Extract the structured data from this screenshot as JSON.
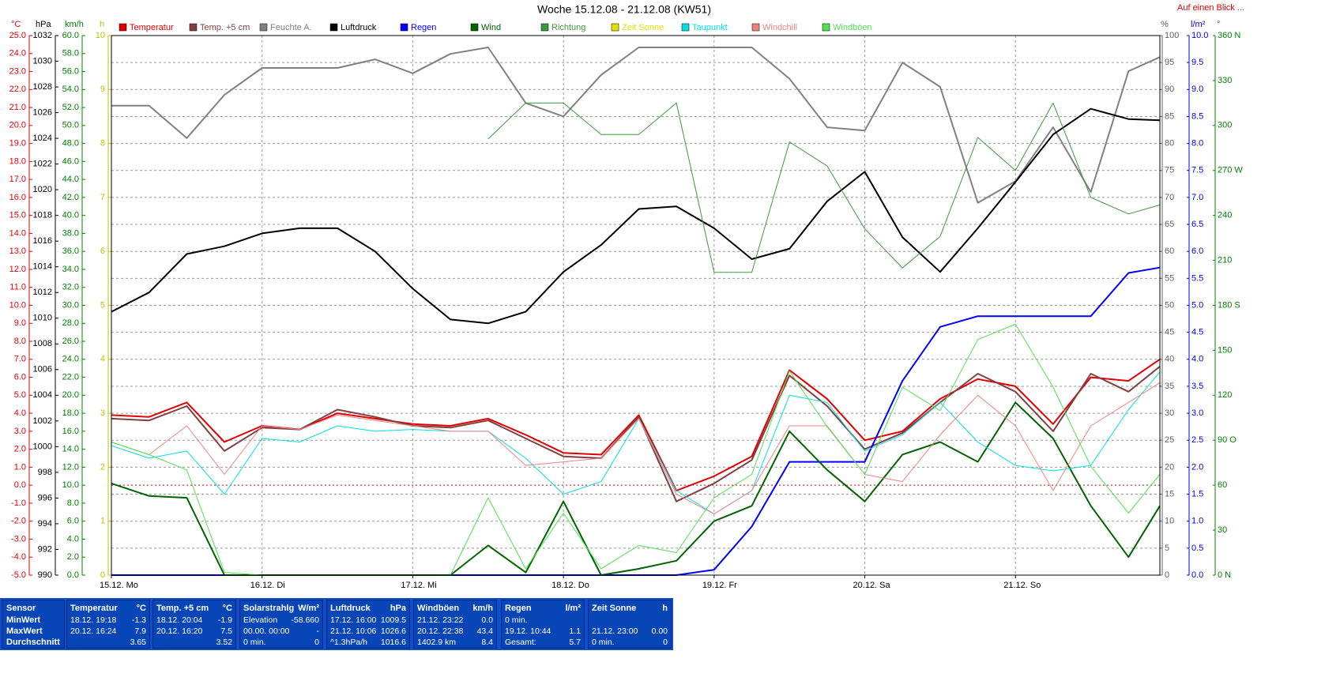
{
  "chart_data": {
    "type": "line",
    "title": "Woche 15.12.08 - 21.12.08 (KW51)",
    "link": "Auf einen Blick ...",
    "x": [
      0,
      6,
      12,
      18,
      24,
      30,
      36,
      42,
      48,
      54,
      60,
      66,
      72,
      78,
      84,
      90,
      96,
      102,
      108,
      114,
      120,
      126,
      132,
      138,
      144,
      150,
      156,
      162,
      167
    ],
    "xlim": [
      0,
      167
    ],
    "xticks": [
      {
        "value": 0,
        "label": "15.12. Mo"
      },
      {
        "value": 24,
        "label": "16.12. Di"
      },
      {
        "value": 48,
        "label": "17.12. Mi"
      },
      {
        "value": 72,
        "label": "18.12. Do"
      },
      {
        "value": 96,
        "label": "19.12. Fr"
      },
      {
        "value": 120,
        "label": "20.12. Sa"
      },
      {
        "value": 144,
        "label": "21.12. So"
      }
    ],
    "grid": true,
    "grid_axis": "pct",
    "axes": {
      "temp": {
        "unit": "°C",
        "color": "#e00000",
        "lim": [
          -5,
          25
        ],
        "ticks": [
          {
            "value": 25,
            "label": "25.0"
          },
          {
            "value": 24,
            "label": "24.0"
          },
          {
            "value": 23,
            "label": "23.0"
          },
          {
            "value": 22,
            "label": "22.0"
          },
          {
            "value": 21,
            "label": "21.0"
          },
          {
            "value": 20,
            "label": "20.0"
          },
          {
            "value": 19,
            "label": "19.0"
          },
          {
            "value": 18,
            "label": "18.0"
          },
          {
            "value": 17,
            "label": "17.0"
          },
          {
            "value": 16,
            "label": "16.0"
          },
          {
            "value": 15,
            "label": "15.0"
          },
          {
            "value": 14,
            "label": "14.0"
          },
          {
            "value": 13,
            "label": "13.0"
          },
          {
            "value": 12,
            "label": "12.0"
          },
          {
            "value": 11,
            "label": "11.0"
          },
          {
            "value": 10,
            "label": "10.0"
          },
          {
            "value": 9,
            "label": "9.0"
          },
          {
            "value": 8,
            "label": "8.0"
          },
          {
            "value": 7,
            "label": "7.0"
          },
          {
            "value": 6,
            "label": "6.0"
          },
          {
            "value": 5,
            "label": "5.0"
          },
          {
            "value": 4,
            "label": "4.0"
          },
          {
            "value": 3,
            "label": "3.0"
          },
          {
            "value": 2,
            "label": "2.0"
          },
          {
            "value": 1,
            "label": "1.0"
          },
          {
            "value": 0,
            "label": "0.0"
          },
          {
            "value": -1,
            "label": "-1.0"
          },
          {
            "value": -2,
            "label": "-2.0"
          },
          {
            "value": -3,
            "label": "-3.0"
          },
          {
            "value": -4,
            "label": "-4.0"
          },
          {
            "value": -5,
            "label": "-5.0"
          }
        ]
      },
      "hpa": {
        "unit": "hPa",
        "color": "#000000",
        "lim": [
          990,
          1032
        ],
        "ticks": [
          1032,
          1030,
          1028,
          1026,
          1024,
          1022,
          1020,
          1018,
          1016,
          1014,
          1012,
          1010,
          1008,
          1006,
          1004,
          1002,
          1000,
          998,
          996,
          994,
          992,
          990
        ]
      },
      "kmh": {
        "unit": "km/h",
        "color": "#008000",
        "lim": [
          0,
          60
        ],
        "ticks": [
          {
            "value": 60,
            "label": "60.0"
          },
          {
            "value": 58,
            "label": "58.0"
          },
          {
            "value": 56,
            "label": "56.0"
          },
          {
            "value": 54,
            "label": "54.0"
          },
          {
            "value": 52,
            "label": "52.0"
          },
          {
            "value": 50,
            "label": "50.0"
          },
          {
            "value": 48,
            "label": "48.0"
          },
          {
            "value": 46,
            "label": "46.0"
          },
          {
            "value": 44,
            "label": "44.0"
          },
          {
            "value": 42,
            "label": "42.0"
          },
          {
            "value": 40,
            "label": "40.0"
          },
          {
            "value": 38,
            "label": "38.0"
          },
          {
            "value": 36,
            "label": "36.0"
          },
          {
            "value": 34,
            "label": "34.0"
          },
          {
            "value": 32,
            "label": "32.0"
          },
          {
            "value": 30,
            "label": "30.0"
          },
          {
            "value": 28,
            "label": "28.0"
          },
          {
            "value": 26,
            "label": "26.0"
          },
          {
            "value": 24,
            "label": "24.0"
          },
          {
            "value": 22,
            "label": "22.0"
          },
          {
            "value": 20,
            "label": "20.0"
          },
          {
            "value": 18,
            "label": "18.0"
          },
          {
            "value": 16,
            "label": "16.0"
          },
          {
            "value": 14,
            "label": "14.0"
          },
          {
            "value": 12,
            "label": "12.0"
          },
          {
            "value": 10,
            "label": "10.0"
          },
          {
            "value": 8,
            "label": "8.0"
          },
          {
            "value": 6,
            "label": "6.0"
          },
          {
            "value": 4,
            "label": "4.0"
          },
          {
            "value": 2,
            "label": "2.0"
          },
          {
            "value": 0,
            "label": "0.0"
          }
        ]
      },
      "h": {
        "unit": "h",
        "color": "#c0c000",
        "lim": [
          0,
          10
        ],
        "ticks": [
          10,
          9,
          8,
          7,
          6,
          5,
          4,
          3,
          2,
          1,
          0
        ]
      },
      "pct": {
        "unit": "%",
        "color": "#606060",
        "lim": [
          0,
          100
        ],
        "ticks": [
          100,
          95,
          90,
          85,
          80,
          75,
          70,
          65,
          60,
          55,
          50,
          45,
          40,
          35,
          30,
          25,
          20,
          15,
          10,
          5,
          0
        ]
      },
      "lm2": {
        "unit": "l/m²",
        "color": "#0000e0",
        "lim": [
          0,
          10
        ],
        "ticks": [
          {
            "value": 10,
            "label": "10.0"
          },
          9.5,
          {
            "value": 9,
            "label": "9.0"
          },
          8.5,
          {
            "value": 8,
            "label": "8.0"
          },
          7.5,
          {
            "value": 7,
            "label": "7.0"
          },
          6.5,
          {
            "value": 6,
            "label": "6.0"
          },
          5.5,
          {
            "value": 5,
            "label": "5.0"
          },
          4.5,
          {
            "value": 4,
            "label": "4.0"
          },
          3.5,
          {
            "value": 3,
            "label": "3.0"
          },
          2.5,
          {
            "value": 2,
            "label": "2.0"
          },
          1.5,
          {
            "value": 1,
            "label": "1.0"
          },
          0.5,
          {
            "value": 0,
            "label": "0.0"
          }
        ]
      },
      "deg": {
        "unit": "°",
        "color": "#008000",
        "lim": [
          0,
          360
        ],
        "ticks": [
          {
            "value": 360,
            "label": "360 N"
          },
          330,
          300,
          {
            "value": 270,
            "label": "270 W"
          },
          240,
          210,
          {
            "value": 180,
            "label": "180 S"
          },
          150,
          120,
          {
            "value": 90,
            "label": "90 O"
          },
          60,
          30,
          {
            "value": 0,
            "label": "0 N"
          }
        ]
      }
    },
    "series": [
      {
        "name": "Temperatur",
        "color": "#e00000",
        "axis": "temp",
        "width": 2,
        "values": [
          3.9,
          3.8,
          4.6,
          2.4,
          3.3,
          3.1,
          4.0,
          3.7,
          3.4,
          3.3,
          3.7,
          2.8,
          1.8,
          1.7,
          3.9,
          -0.3,
          0.5,
          1.6,
          6.4,
          4.8,
          2.5,
          3.0,
          4.8,
          5.9,
          5.5,
          3.4,
          6.0,
          5.8,
          7.0
        ]
      },
      {
        "name": "Temp. +5 cm",
        "color": "#804040",
        "axis": "temp",
        "width": 2,
        "values": [
          3.7,
          3.6,
          4.4,
          1.9,
          3.2,
          3.1,
          4.2,
          3.8,
          3.3,
          3.2,
          3.6,
          2.6,
          1.6,
          1.5,
          3.8,
          -0.9,
          0.1,
          1.4,
          6.1,
          4.4,
          2.0,
          2.9,
          4.6,
          6.2,
          5.2,
          3.0,
          6.2,
          5.2,
          6.6
        ]
      },
      {
        "name": "Feuchte A.",
        "color": "#808080",
        "axis": "pct",
        "width": 2,
        "values": [
          87,
          87,
          81,
          89,
          94,
          94,
          94,
          95.6,
          93,
          96.6,
          97.8,
          87.5,
          85,
          92.7,
          97.8,
          97.8,
          97.8,
          97.8,
          92,
          83,
          82.4,
          95,
          90.5,
          69,
          73,
          83,
          71,
          93.4,
          96
        ]
      },
      {
        "name": "Luftdruck",
        "color": "#000000",
        "axis": "hpa",
        "width": 2,
        "values": [
          1010.5,
          1012,
          1015,
          1015.6,
          1016.6,
          1017,
          1017,
          1015.2,
          1012.3,
          1009.9,
          1009.6,
          1010.5,
          1013.6,
          1015.7,
          1018.5,
          1018.7,
          1017,
          1014.6,
          1015.4,
          1019.1,
          1021.4,
          1016.3,
          1013.6,
          1017,
          1020.6,
          1024.3,
          1026.3,
          1025.5,
          1025.4
        ]
      },
      {
        "name": "Regen",
        "color": "#0000ff",
        "axis": "lm2",
        "width": 2,
        "values": [
          0,
          0,
          0,
          0,
          0,
          0,
          0,
          0,
          0,
          0,
          0,
          0,
          0,
          0,
          0,
          0,
          0.1,
          0.9,
          2.1,
          2.1,
          2.1,
          3.6,
          4.6,
          4.8,
          4.8,
          4.8,
          4.8,
          5.6,
          5.7
        ]
      },
      {
        "name": "Wind",
        "color": "#006400",
        "axis": "kmh",
        "width": 2,
        "values": [
          10.2,
          8.8,
          8.6,
          0,
          0,
          0,
          0,
          0,
          0,
          0,
          3.3,
          0.3,
          8.2,
          0,
          0.7,
          1.6,
          6,
          7.7,
          16,
          11.7,
          8.2,
          13.4,
          14.8,
          12.6,
          19.2,
          15.2,
          7.7,
          2,
          7.7
        ]
      },
      {
        "name": "Richtung",
        "color": "#3a9a3a",
        "axis": "deg",
        "width": 1,
        "values": [
          null,
          null,
          null,
          null,
          null,
          null,
          null,
          null,
          null,
          null,
          291,
          315,
          315,
          294,
          294,
          315,
          202,
          202,
          289,
          273,
          231,
          205,
          226,
          292,
          270,
          315,
          252,
          241,
          247
        ]
      },
      {
        "name": "Zeit Sonne",
        "color": "#e0e000",
        "axis": "h",
        "width": 1,
        "values": [
          0,
          0,
          0,
          0,
          0,
          0,
          0,
          0,
          0,
          0,
          0,
          0,
          0,
          0,
          0,
          0,
          0,
          0,
          0,
          0,
          0,
          0,
          0,
          0,
          0,
          0,
          0,
          0,
          0
        ]
      },
      {
        "name": "Taupunkt",
        "color": "#00e0e0",
        "axis": "temp",
        "width": 1,
        "values": [
          2.2,
          1.5,
          1.9,
          -0.5,
          2.6,
          2.4,
          3.3,
          3.0,
          3.1,
          3.0,
          3.0,
          1.5,
          -0.5,
          0.2,
          3.7,
          -0.3,
          -1.6,
          -0.3,
          5.0,
          4.6,
          1.9,
          2.8,
          4.6,
          2.4,
          1.1,
          0.8,
          1.1,
          4.2,
          6.3
        ]
      },
      {
        "name": "Windchill",
        "color": "#f08080",
        "axis": "temp",
        "width": 1,
        "values": [
          2.4,
          1.7,
          3.3,
          0.6,
          3.3,
          3.1,
          3.9,
          3.6,
          3.3,
          3.0,
          3.0,
          1.1,
          1.3,
          1.5,
          3.7,
          -0.5,
          -1.6,
          -0.3,
          3.3,
          3.3,
          0.6,
          0.2,
          2.8,
          5.0,
          3.3,
          -0.3,
          3.3,
          4.6,
          5.7
        ]
      },
      {
        "name": "Windböen",
        "color": "#50e050",
        "axis": "kmh",
        "width": 1,
        "values": [
          14.8,
          13.4,
          11.7,
          0.3,
          0,
          0,
          0,
          0,
          0,
          0,
          8.6,
          0.7,
          6.9,
          0.7,
          3.3,
          2.5,
          8.6,
          11.2,
          22.7,
          16.5,
          11.2,
          20.9,
          18.3,
          26.2,
          27.9,
          20.9,
          12.1,
          6.9,
          11.2
        ]
      }
    ]
  },
  "table": {
    "sensor": {
      "name": "Sensor",
      "rows": [
        "MinWert",
        "MaxWert",
        "Durchschnitt"
      ]
    },
    "columns": [
      {
        "name": "Temperatur",
        "unit": "°C",
        "min": {
          "left": "18.12. 19:18",
          "right": "-1.3"
        },
        "max": {
          "left": "20.12. 16:24",
          "right": "7.9"
        },
        "avg": {
          "right": "3.65"
        }
      },
      {
        "name": "Temp. +5 cm",
        "unit": "°C",
        "min": {
          "left": "18.12. 20:04",
          "right": "-1.9"
        },
        "max": {
          "left": "20.12. 16:20",
          "right": "7.5"
        },
        "avg": {
          "right": "3.52"
        }
      },
      {
        "name": "Solarstrahlg",
        "unit": "W/m²",
        "min": {
          "left": "Elevation",
          "right": "-58.660"
        },
        "max": {
          "left": "00.00. 00:00",
          "right": "-"
        },
        "avg": {
          "left": "0 min.",
          "right": "0"
        }
      },
      {
        "name": "Luftdruck",
        "unit": "hPa",
        "min": {
          "left": "17.12. 16:00",
          "right": "1009.5"
        },
        "max": {
          "left": "21.12. 10:06",
          "right": "1026.6"
        },
        "avg": {
          "left": "^1.3hPa/h",
          "right": "1016.6"
        }
      },
      {
        "name": "Windböen",
        "unit": "km/h",
        "min": {
          "left": "21.12. 23:22",
          "right": "0.0"
        },
        "max": {
          "left": "20.12. 22:38",
          "right": "43.4"
        },
        "avg": {
          "left": "1402.9 km",
          "right": "8.4"
        }
      },
      {
        "name": "Regen",
        "unit": "l/m²",
        "min": {
          "left": "0 min."
        },
        "max": {
          "left": "19.12. 10:44",
          "right": "1.1"
        },
        "avg": {
          "left": "Gesamt:",
          "right": "5.7"
        }
      },
      {
        "name": "Zeit Sonne",
        "unit": "h",
        "max": {
          "left": "21.12. 23:00",
          "right": "0.00"
        },
        "avg": {
          "left": "0 min.",
          "right": "0"
        }
      }
    ]
  }
}
